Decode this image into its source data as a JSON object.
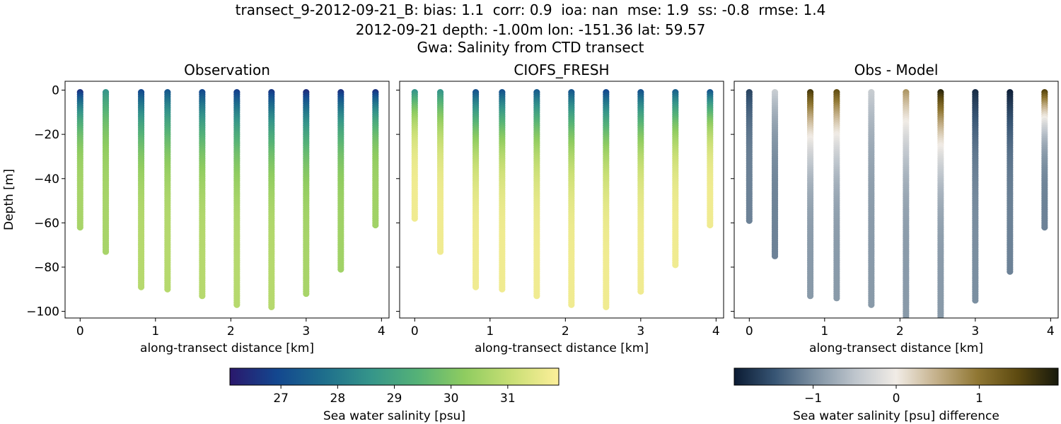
{
  "figure": {
    "title_lines": [
      "transect_9-2012-09-21_B: bias: 1.1  corr: 0.9  ioa: nan  mse: 1.9  ss: -0.8  rmse: 1.4",
      "2012-09-21 depth: -1.00m lon: -151.36 lat: 59.57",
      "Gwa: Salinity from CTD transect"
    ]
  },
  "chart_data": [
    {
      "type": "scatter",
      "title": "Observation",
      "xlabel": "along-transect distance [km]",
      "ylabel": "Depth [m]",
      "xlim": [
        -0.2,
        4.1
      ],
      "ylim": [
        -103,
        4
      ],
      "xticks": [
        "0",
        "1",
        "2",
        "3",
        "4"
      ],
      "yticks": [
        "0",
        "−20",
        "−40",
        "−60",
        "−80",
        "−100"
      ],
      "colormap": "haline",
      "color_range": [
        26.1,
        31.9
      ],
      "stations": [
        {
          "x": 0.0,
          "bottom": -62,
          "top_value": 26.6,
          "bottom_value": 30.6
        },
        {
          "x": 0.34,
          "bottom": -73,
          "top_value": 28.6,
          "bottom_value": 30.6
        },
        {
          "x": 0.81,
          "bottom": -89,
          "top_value": 27.0,
          "bottom_value": 30.8
        },
        {
          "x": 1.16,
          "bottom": -90,
          "top_value": 27.3,
          "bottom_value": 30.8
        },
        {
          "x": 1.62,
          "bottom": -93,
          "top_value": 27.0,
          "bottom_value": 30.8
        },
        {
          "x": 2.08,
          "bottom": -97,
          "top_value": 26.8,
          "bottom_value": 30.8
        },
        {
          "x": 2.54,
          "bottom": -98,
          "top_value": 26.7,
          "bottom_value": 30.8
        },
        {
          "x": 3.0,
          "bottom": -92,
          "top_value": 26.5,
          "bottom_value": 30.6
        },
        {
          "x": 3.46,
          "bottom": -81,
          "top_value": 26.6,
          "bottom_value": 30.5
        },
        {
          "x": 3.92,
          "bottom": -61,
          "top_value": 26.6,
          "bottom_value": 30.5
        }
      ]
    },
    {
      "type": "scatter",
      "title": "CIOFS_FRESH",
      "xlabel": "along-transect distance [km]",
      "xlim": [
        -0.2,
        4.1
      ],
      "ylim": [
        -103,
        4
      ],
      "xticks": [
        "0",
        "1",
        "2",
        "3",
        "4"
      ],
      "colormap": "haline",
      "color_range": [
        26.1,
        31.9
      ],
      "stations": [
        {
          "x": 0.0,
          "bottom": -58,
          "top_value": 28.6,
          "bottom_value": 31.7
        },
        {
          "x": 0.34,
          "bottom": -73,
          "top_value": 28.6,
          "bottom_value": 31.7
        },
        {
          "x": 0.81,
          "bottom": -89,
          "top_value": 27.2,
          "bottom_value": 31.7
        },
        {
          "x": 1.16,
          "bottom": -90,
          "top_value": 27.2,
          "bottom_value": 31.7
        },
        {
          "x": 1.62,
          "bottom": -93,
          "top_value": 27.4,
          "bottom_value": 31.7
        },
        {
          "x": 2.08,
          "bottom": -97,
          "top_value": 27.3,
          "bottom_value": 31.7
        },
        {
          "x": 2.54,
          "bottom": -98,
          "top_value": 27.0,
          "bottom_value": 31.7
        },
        {
          "x": 3.0,
          "bottom": -91,
          "top_value": 27.2,
          "bottom_value": 31.7
        },
        {
          "x": 3.46,
          "bottom": -79,
          "top_value": 27.5,
          "bottom_value": 31.7
        },
        {
          "x": 3.92,
          "bottom": -61,
          "top_value": 27.3,
          "bottom_value": 31.7
        }
      ]
    },
    {
      "type": "scatter",
      "title": "Obs - Model",
      "xlabel": "along-transect distance [km]",
      "xlim": [
        -0.2,
        4.1
      ],
      "ylim": [
        -103,
        4
      ],
      "xticks": [
        "0",
        "1",
        "2",
        "3",
        "4"
      ],
      "colormap": "diff",
      "color_range": [
        -1.95,
        1.95
      ],
      "stations": [
        {
          "x": 0.0,
          "bottom": -59,
          "top_value": -1.6,
          "bottom_value": -1.1
        },
        {
          "x": 0.34,
          "bottom": -75,
          "top_value": -0.4,
          "bottom_value": -1.1
        },
        {
          "x": 0.81,
          "bottom": -93,
          "top_value": 1.6,
          "bottom_value": -0.9
        },
        {
          "x": 1.16,
          "bottom": -94,
          "top_value": 1.4,
          "bottom_value": -0.9
        },
        {
          "x": 1.62,
          "bottom": -97,
          "top_value": -0.4,
          "bottom_value": -0.9
        },
        {
          "x": 2.08,
          "bottom": -103,
          "top_value": 0.7,
          "bottom_value": -0.9
        },
        {
          "x": 2.54,
          "bottom": -103,
          "top_value": 1.8,
          "bottom_value": -0.9
        },
        {
          "x": 3.0,
          "bottom": -95,
          "top_value": -1.8,
          "bottom_value": -1.0
        },
        {
          "x": 3.46,
          "bottom": -82,
          "top_value": -1.9,
          "bottom_value": -1.1
        },
        {
          "x": 3.92,
          "bottom": -62,
          "top_value": 1.5,
          "bottom_value": -1.1
        }
      ]
    }
  ],
  "colorbars": [
    {
      "ticks": [
        "27",
        "28",
        "29",
        "30",
        "31"
      ],
      "tick_values": [
        27,
        28,
        29,
        30,
        31
      ],
      "range": [
        26.1,
        31.9
      ],
      "label": "Sea water salinity [psu]"
    },
    {
      "ticks": [
        "−1",
        "0",
        "1"
      ],
      "tick_values": [
        -1,
        0,
        1
      ],
      "range": [
        -1.95,
        1.95
      ],
      "label": "Sea water salinity [psu] difference"
    }
  ],
  "colors": {
    "haline": [
      "#2a186c",
      "#13478f",
      "#1e6e8c",
      "#35958a",
      "#55b277",
      "#8fcc60",
      "#c9df75",
      "#fdef9a"
    ],
    "diff": [
      "#0b1b33",
      "#375574",
      "#7f92a3",
      "#bfc6cd",
      "#f1ece6",
      "#c4b08a",
      "#907733",
      "#5d4a10",
      "#17190c"
    ]
  }
}
